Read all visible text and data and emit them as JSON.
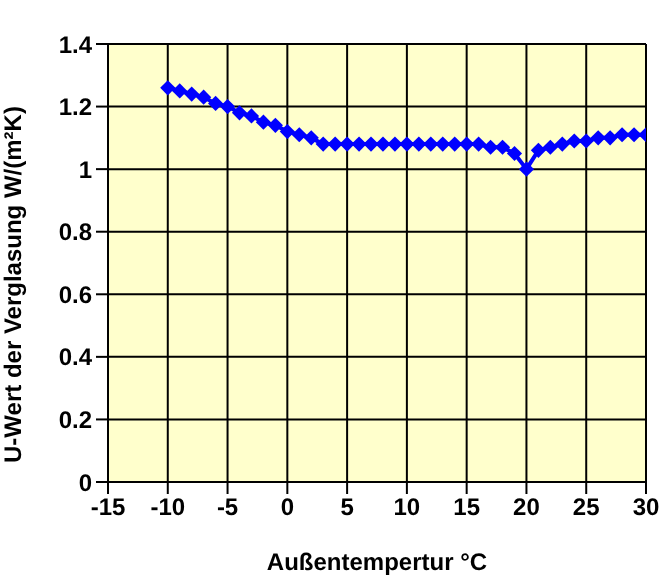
{
  "chart_data": {
    "type": "line",
    "xlabel": "Außentempertur °C",
    "ylabel": "U-Wert der Verglasung W/(m²K)",
    "x": [
      -10,
      -9,
      -8,
      -7,
      -6,
      -5,
      -4,
      -3,
      -2,
      -1,
      0,
      1,
      2,
      3,
      4,
      5,
      6,
      7,
      8,
      9,
      10,
      11,
      12,
      13,
      14,
      15,
      16,
      17,
      18,
      19,
      20,
      21,
      22,
      23,
      24,
      25,
      26,
      27,
      28,
      29,
      30
    ],
    "series": [
      {
        "color": "#0000ff",
        "values": [
          1.26,
          1.25,
          1.24,
          1.23,
          1.21,
          1.2,
          1.18,
          1.17,
          1.15,
          1.14,
          1.12,
          1.11,
          1.1,
          1.08,
          1.08,
          1.08,
          1.08,
          1.08,
          1.08,
          1.08,
          1.08,
          1.08,
          1.08,
          1.08,
          1.08,
          1.08,
          1.08,
          1.07,
          1.07,
          1.05,
          1.0,
          1.06,
          1.07,
          1.08,
          1.09,
          1.09,
          1.1,
          1.1,
          1.11,
          1.11,
          1.11
        ]
      }
    ],
    "xlim": [
      -15,
      30
    ],
    "xticks": [
      -15,
      -10,
      -5,
      0,
      5,
      10,
      15,
      20,
      25,
      30
    ],
    "ylim": [
      0,
      1.4
    ],
    "yticks": [
      0,
      0.2,
      0.4,
      0.6,
      0.8,
      1,
      1.2,
      1.4
    ],
    "grid": true,
    "marker": "diamond",
    "line_style": "solid",
    "legend": false
  }
}
